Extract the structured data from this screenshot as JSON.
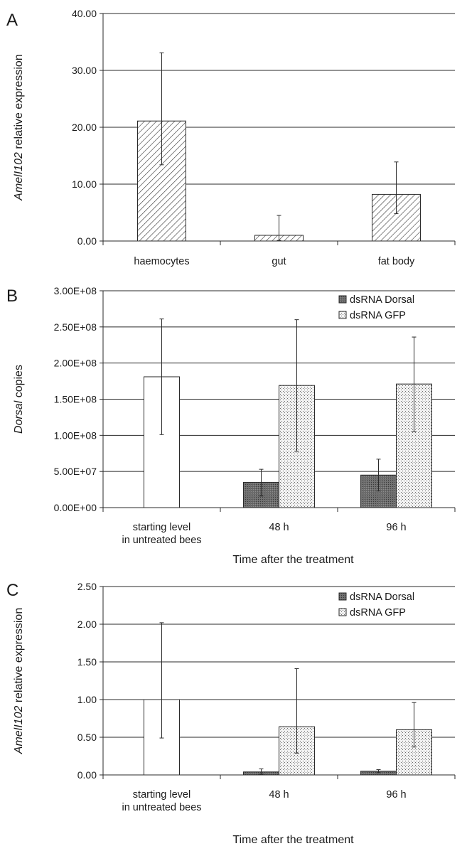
{
  "chart_data": [
    {
      "panel": "A",
      "type": "bar",
      "ylabel_italic": "AmelI102",
      "ylabel_rest": " relative expression",
      "xlabel": "",
      "ylim": [
        0,
        40
      ],
      "yticks": [
        0,
        10,
        20,
        30,
        40
      ],
      "ytick_labels": [
        "0.00",
        "10.00",
        "20.00",
        "30.00",
        "40.00"
      ],
      "grid": true,
      "categories": [
        [
          "haemocytes"
        ],
        [
          "gut"
        ],
        [
          "fat body"
        ]
      ],
      "series": [
        {
          "style": "hatch",
          "values": [
            21.1,
            1.0,
            8.2
          ],
          "err_low": [
            13.4,
            0.1,
            4.8
          ],
          "err_high": [
            33.1,
            4.5,
            13.9
          ]
        }
      ]
    },
    {
      "panel": "B",
      "type": "bar",
      "ylabel_italic": "Dorsal",
      "ylabel_rest": " copies",
      "xlabel": "Time after the treatment",
      "ylim": [
        0,
        300000000
      ],
      "yticks": [
        0,
        50000000,
        100000000,
        150000000,
        200000000,
        250000000,
        300000000
      ],
      "ytick_labels": [
        "0.00E+00",
        "5.00E+07",
        "1.00E+08",
        "1.50E+08",
        "2.00E+08",
        "2.50E+08",
        "3.00E+08"
      ],
      "grid": true,
      "legend": "top-right",
      "categories": [
        [
          "starting level",
          "in untreated bees"
        ],
        [
          "48 h"
        ],
        [
          "96 h"
        ]
      ],
      "series": [
        {
          "style": "white",
          "values": [
            181000000,
            null,
            null
          ],
          "err_low": [
            101000000,
            null,
            null
          ],
          "err_high": [
            261000000,
            null,
            null
          ]
        },
        {
          "name": "dsRNA Dorsal",
          "style": "dark",
          "values": [
            null,
            35000000,
            45000000
          ],
          "err_low": [
            null,
            16000000,
            23000000
          ],
          "err_high": [
            null,
            53000000,
            67000000
          ]
        },
        {
          "name": "dsRNA GFP",
          "style": "dots",
          "values": [
            null,
            169000000,
            171000000
          ],
          "err_low": [
            null,
            78000000,
            105000000
          ],
          "err_high": [
            null,
            260000000,
            236000000
          ]
        }
      ]
    },
    {
      "panel": "C",
      "type": "bar",
      "ylabel_italic": "AmelI102",
      "ylabel_rest": " relative expression",
      "xlabel": "Time after the treatment",
      "ylim": [
        0,
        2.5
      ],
      "yticks": [
        0,
        0.5,
        1.0,
        1.5,
        2.0,
        2.5
      ],
      "ytick_labels": [
        "0.00",
        "0.50",
        "1.00",
        "1.50",
        "2.00",
        "2.50"
      ],
      "grid": true,
      "legend": "top-right",
      "categories": [
        [
          "starting level",
          "in untreated bees"
        ],
        [
          "48 h"
        ],
        [
          "96 h"
        ]
      ],
      "series": [
        {
          "style": "white",
          "values": [
            1.0,
            null,
            null
          ],
          "err_low": [
            0.49,
            null,
            null
          ],
          "err_high": [
            2.02,
            null,
            null
          ]
        },
        {
          "name": "dsRNA Dorsal",
          "style": "dark",
          "values": [
            null,
            0.04,
            0.05
          ],
          "err_low": [
            null,
            0.01,
            0.03
          ],
          "err_high": [
            null,
            0.08,
            0.07
          ]
        },
        {
          "name": "dsRNA GFP",
          "style": "dots",
          "values": [
            null,
            0.64,
            0.6
          ],
          "err_low": [
            null,
            0.29,
            0.37
          ],
          "err_high": [
            null,
            1.41,
            0.96
          ]
        }
      ]
    }
  ]
}
